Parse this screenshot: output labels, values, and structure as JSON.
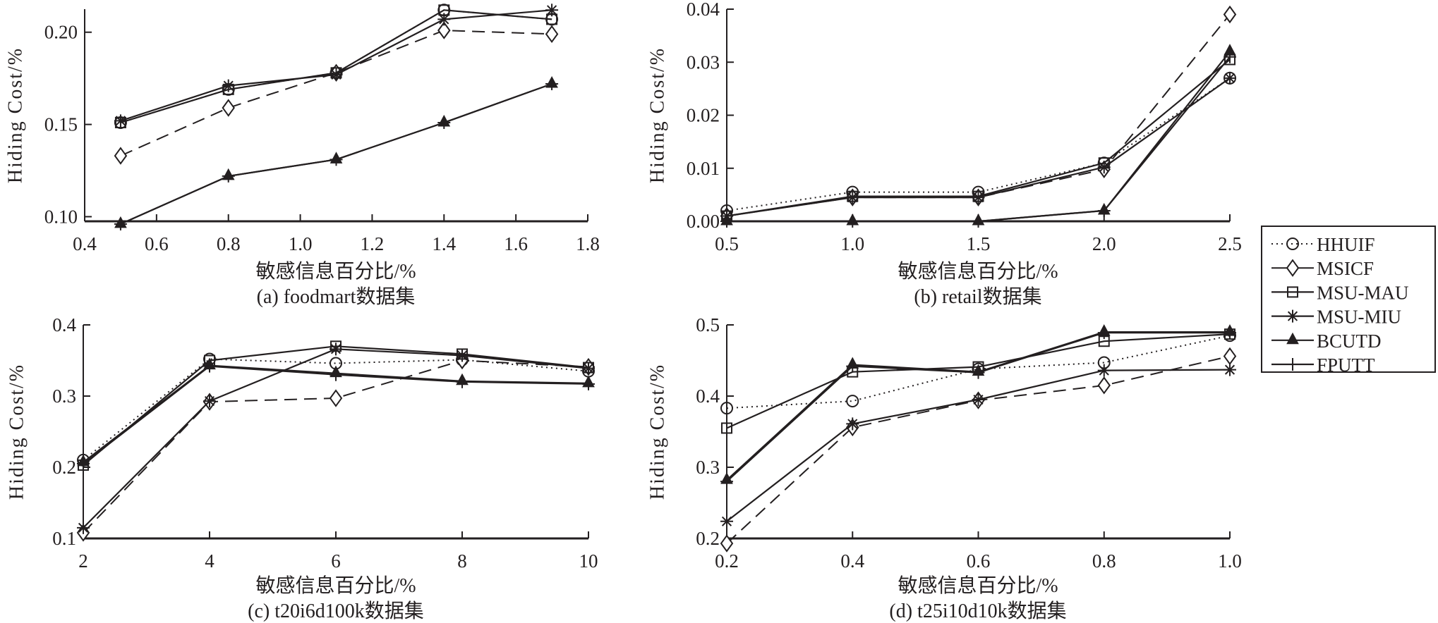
{
  "figure": {
    "legend": {
      "placement": "right-middle",
      "entries": [
        {
          "name": "HHUIF",
          "marker": "circle-open",
          "line": "dotted"
        },
        {
          "name": "MSICF",
          "marker": "diamond-open",
          "line": "dashed"
        },
        {
          "name": "MSU-MAU",
          "marker": "square-open",
          "line": "solid"
        },
        {
          "name": "MSU-MIU",
          "marker": "asterisk",
          "line": "solid"
        },
        {
          "name": "BCUTD",
          "marker": "triangle-filled",
          "line": "solid"
        },
        {
          "name": "FPUTT",
          "marker": "plus",
          "line": "solid"
        }
      ]
    },
    "colors": {
      "ink": "#231f20",
      "background": "#ffffff"
    }
  },
  "chart_data": [
    {
      "type": "line",
      "panel": "a",
      "caption": "(a) foodmart数据集",
      "xlabel": "敏感信息百分比/%",
      "ylabel": "Hiding Cost/%",
      "xlim": [
        0.4,
        1.8
      ],
      "ylim": [
        0.0975,
        0.2125
      ],
      "xticks": [
        0.4,
        0.6,
        0.8,
        1.0,
        1.2,
        1.4,
        1.6,
        1.8
      ],
      "xtick_labels": [
        "0.4",
        "0.6",
        "0.8",
        "1.0",
        "1.2",
        "1.4",
        "1.6",
        "1.8"
      ],
      "yticks": [
        0.1,
        0.15,
        0.2
      ],
      "ytick_labels": [
        "0.10",
        "0.15",
        "0.20"
      ],
      "grid": false,
      "x": [
        0.5,
        0.8,
        1.1,
        1.4,
        1.7
      ],
      "series": [
        {
          "name": "HHUIF",
          "values": [
            0.151,
            0.169,
            0.178,
            0.212,
            0.207
          ]
        },
        {
          "name": "MSICF",
          "values": [
            0.133,
            0.159,
            0.178,
            0.201,
            0.199
          ]
        },
        {
          "name": "MSU-MAU",
          "values": [
            0.151,
            0.169,
            0.178,
            0.212,
            0.207
          ]
        },
        {
          "name": "MSU-MIU",
          "values": [
            0.152,
            0.171,
            0.177,
            0.207,
            0.212
          ]
        },
        {
          "name": "BCUTD",
          "values": [
            0.096,
            0.122,
            0.131,
            0.151,
            0.172
          ]
        },
        {
          "name": "FPUTT",
          "values": [
            0.096,
            0.122,
            0.131,
            0.151,
            0.172
          ]
        }
      ]
    },
    {
      "type": "line",
      "panel": "b",
      "caption": "(b) retail数据集",
      "xlabel": "敏感信息百分比/%",
      "ylabel": "Hiding Cost/%",
      "xlim": [
        0.5,
        2.5
      ],
      "ylim": [
        0.0,
        0.04
      ],
      "xticks": [
        0.5,
        1.0,
        1.5,
        2.0,
        2.5
      ],
      "xtick_labels": [
        "0.5",
        "1.0",
        "1.5",
        "2.0",
        "2.5"
      ],
      "yticks": [
        0.0,
        0.01,
        0.02,
        0.03,
        0.04
      ],
      "ytick_labels": [
        "0.00",
        "0.01",
        "0.02",
        "0.03",
        "0.04"
      ],
      "grid": false,
      "x": [
        0.5,
        1.0,
        1.5,
        2.0,
        2.5
      ],
      "series": [
        {
          "name": "HHUIF",
          "values": [
            0.002,
            0.0055,
            0.0055,
            0.011,
            0.027
          ]
        },
        {
          "name": "MSICF",
          "values": [
            0.001,
            0.0045,
            0.0045,
            0.0098,
            0.039
          ]
        },
        {
          "name": "MSU-MAU",
          "values": [
            0.001,
            0.0047,
            0.0047,
            0.011,
            0.0305
          ]
        },
        {
          "name": "MSU-MIU",
          "values": [
            0.001,
            0.0045,
            0.0045,
            0.0102,
            0.027
          ]
        },
        {
          "name": "BCUTD",
          "values": [
            0.0,
            0.0,
            0.0,
            0.002,
            0.032
          ]
        },
        {
          "name": "FPUTT",
          "values": [
            0.0,
            0.0,
            0.0,
            0.002,
            0.031
          ]
        }
      ]
    },
    {
      "type": "line",
      "panel": "c",
      "caption": "(c) t20i6d100k数据集",
      "xlabel": "敏感信息百分比/%",
      "ylabel": "Hiding Cost/%",
      "xlim": [
        2,
        10
      ],
      "ylim": [
        0.1,
        0.4
      ],
      "xticks": [
        2,
        4,
        6,
        8,
        10
      ],
      "xtick_labels": [
        "2",
        "4",
        "6",
        "8",
        "10"
      ],
      "yticks": [
        0.1,
        0.2,
        0.3,
        0.4
      ],
      "ytick_labels": [
        "0.1",
        "0.2",
        "0.3",
        "0.4"
      ],
      "grid": false,
      "x": [
        2,
        4,
        6,
        8,
        10
      ],
      "series": [
        {
          "name": "HHUIF",
          "values": [
            0.21,
            0.352,
            0.346,
            0.351,
            0.335
          ]
        },
        {
          "name": "MSICF",
          "values": [
            0.108,
            0.292,
            0.297,
            0.35,
            0.341
          ]
        },
        {
          "name": "MSU-MAU",
          "values": [
            0.203,
            0.35,
            0.37,
            0.359,
            0.34
          ]
        },
        {
          "name": "MSU-MIU",
          "values": [
            0.115,
            0.293,
            0.366,
            0.357,
            0.339
          ]
        },
        {
          "name": "BCUTD",
          "values": [
            0.207,
            0.343,
            0.332,
            0.321,
            0.318
          ]
        },
        {
          "name": "FPUTT",
          "values": [
            0.205,
            0.342,
            0.33,
            0.32,
            0.317
          ]
        }
      ]
    },
    {
      "type": "line",
      "panel": "d",
      "caption": "(d) t25i10d10k数据集",
      "xlabel": "敏感信息百分比/%",
      "ylabel": "Hiding Cost/%",
      "xlim": [
        0.2,
        1.0
      ],
      "ylim": [
        0.2,
        0.5
      ],
      "xticks": [
        0.2,
        0.4,
        0.6,
        0.8,
        1.0
      ],
      "xtick_labels": [
        "0.2",
        "0.4",
        "0.6",
        "0.8",
        "1.0"
      ],
      "yticks": [
        0.2,
        0.3,
        0.4,
        0.5
      ],
      "ytick_labels": [
        "0.2",
        "0.3",
        "0.4",
        "0.5"
      ],
      "grid": false,
      "x": [
        0.2,
        0.4,
        0.6,
        0.8,
        1.0
      ],
      "series": [
        {
          "name": "HHUIF",
          "values": [
            0.383,
            0.393,
            0.438,
            0.447,
            0.485
          ]
        },
        {
          "name": "MSICF",
          "values": [
            0.193,
            0.356,
            0.394,
            0.415,
            0.456
          ]
        },
        {
          "name": "MSU-MAU",
          "values": [
            0.355,
            0.434,
            0.441,
            0.477,
            0.487
          ]
        },
        {
          "name": "MSU-MIU",
          "values": [
            0.224,
            0.361,
            0.395,
            0.436,
            0.437
          ]
        },
        {
          "name": "BCUTD",
          "values": [
            0.282,
            0.444,
            0.434,
            0.49,
            0.49
          ]
        },
        {
          "name": "FPUTT",
          "values": [
            0.28,
            0.442,
            0.433,
            0.489,
            0.489
          ]
        }
      ]
    }
  ]
}
